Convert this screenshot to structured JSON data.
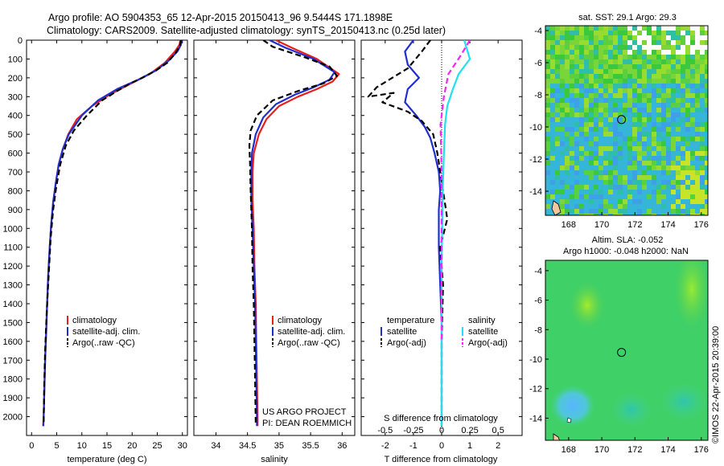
{
  "header": {
    "line1": "Argo profile: AO 5904353_65 12-Apr-2015 20150413_96 9.5444S 171.1898E",
    "line2": "Climatology: CARS2009. Satellite-adjusted climatology: synTS_20150413.nc (0.25d later)"
  },
  "colors": {
    "climatology": "#e8201c",
    "satellite": "#1f2ecf",
    "argo": "#000000",
    "sal_sat": "#22e0ee",
    "sal_argo": "#ff22ff"
  },
  "chart_data": [
    {
      "id": "temp",
      "type": "line",
      "xlabel": "temperature (deg C)",
      "ylabel": "",
      "xlim": [
        -1,
        31
      ],
      "ylim": [
        2100,
        0
      ],
      "xticks": [
        0,
        5,
        10,
        15,
        20,
        25,
        30
      ],
      "yticks": [
        0,
        100,
        200,
        300,
        400,
        500,
        600,
        700,
        800,
        900,
        1000,
        1100,
        1200,
        1300,
        1400,
        1500,
        1600,
        1700,
        1800,
        1900,
        2000
      ],
      "legend": [
        "climatology",
        "satellite-adj. clim.",
        "Argo(..raw -QC)"
      ],
      "series": [
        {
          "name": "climatology",
          "color": "#e8201c",
          "dash": "",
          "x": [
            29.6,
            29.4,
            28.5,
            26.5,
            23.5,
            19.8,
            15.5,
            12.0,
            9.0,
            7.3,
            6.2,
            5.4,
            4.8,
            4.3,
            3.9,
            3.6,
            3.3,
            3.1,
            2.9,
            2.7,
            2.55,
            2.4,
            2.3
          ],
          "y": [
            0,
            25,
            60,
            120,
            180,
            230,
            290,
            350,
            420,
            500,
            580,
            660,
            760,
            860,
            980,
            1100,
            1250,
            1400,
            1550,
            1700,
            1850,
            2000,
            2050
          ]
        },
        {
          "name": "satellite-adj. clim.",
          "color": "#1f2ecf",
          "dash": "",
          "x": [
            29.8,
            29.7,
            29.0,
            27.2,
            24.8,
            21.2,
            17.0,
            13.2,
            10.0,
            7.4,
            6.2,
            5.4,
            4.8,
            4.3,
            3.9,
            3.6,
            3.3,
            3.1,
            2.9,
            2.7,
            2.55,
            2.4,
            2.35
          ],
          "y": [
            0,
            25,
            60,
            110,
            160,
            210,
            260,
            320,
            400,
            500,
            580,
            660,
            760,
            860,
            980,
            1100,
            1250,
            1400,
            1550,
            1700,
            1850,
            2000,
            2050
          ]
        },
        {
          "name": "Argo(..raw -QC)",
          "color": "#000000",
          "dash": "7,4",
          "x": [
            29.7,
            29.5,
            28.6,
            27.0,
            24.8,
            22.0,
            19.6,
            17.0,
            14.0,
            11.0,
            8.4,
            6.8,
            5.7,
            4.9,
            4.3,
            3.8,
            3.4,
            3.0,
            2.7,
            2.5,
            2.4
          ],
          "y": [
            0,
            30,
            70,
            120,
            160,
            200,
            230,
            270,
            320,
            400,
            480,
            560,
            660,
            780,
            900,
            1050,
            1250,
            1450,
            1650,
            1850,
            2040
          ]
        }
      ]
    },
    {
      "id": "sal",
      "type": "line",
      "xlabel": "salinity",
      "ylabel": "",
      "xlim": [
        33.65,
        36.2
      ],
      "ylim": [
        2100,
        0
      ],
      "xticks": [
        34,
        34.5,
        35,
        35.5,
        36
      ],
      "xticklabels": [
        "34",
        "34.5",
        "35",
        "35.5",
        "36"
      ],
      "legend": [
        "climatology",
        "satellite-adj. clim.",
        "Argo(..raw -QC)"
      ],
      "annotation": [
        "US ARGO PROJECT",
        "PI: DEAN ROEMMICH"
      ],
      "series": [
        {
          "name": "climatology",
          "color": "#e8201c",
          "dash": "",
          "x": [
            34.95,
            35.2,
            35.6,
            35.95,
            35.85,
            35.6,
            35.3,
            35.0,
            34.8,
            34.68,
            34.6,
            34.58,
            34.58,
            34.6,
            34.61,
            34.63,
            34.64,
            34.65,
            34.66,
            34.66
          ],
          "y": [
            0,
            40,
            100,
            180,
            220,
            260,
            300,
            350,
            420,
            500,
            600,
            700,
            850,
            1000,
            1200,
            1400,
            1600,
            1800,
            2000,
            2050
          ]
        },
        {
          "name": "satellite-adj. clim.",
          "color": "#1f2ecf",
          "dash": "",
          "x": [
            34.85,
            35.1,
            35.55,
            35.88,
            35.8,
            35.55,
            35.25,
            34.95,
            34.75,
            34.63,
            34.57,
            34.56,
            34.56,
            34.58,
            34.6,
            34.62,
            34.63,
            34.64,
            34.65,
            34.65
          ],
          "y": [
            0,
            40,
            100,
            170,
            210,
            250,
            290,
            340,
            410,
            500,
            600,
            700,
            850,
            1000,
            1200,
            1400,
            1600,
            1800,
            2000,
            2050
          ]
        },
        {
          "name": "Argo(..raw -QC)",
          "color": "#000000",
          "dash": "7,4",
          "x": [
            34.75,
            34.9,
            35.4,
            35.8,
            35.92,
            35.7,
            35.3,
            34.9,
            34.65,
            34.55,
            34.53,
            34.54,
            34.55,
            34.57,
            34.58,
            34.6,
            34.61,
            34.62,
            34.63
          ],
          "y": [
            0,
            35,
            90,
            140,
            190,
            230,
            270,
            320,
            400,
            480,
            560,
            650,
            800,
            1000,
            1200,
            1400,
            1600,
            1800,
            2040
          ]
        }
      ]
    },
    {
      "id": "diff",
      "type": "line",
      "xlabel": "T difference from climatology",
      "ylabel": "",
      "x2label": "S difference from climatology",
      "xlim": [
        -2.85,
        2.85
      ],
      "ylim": [
        2100,
        0
      ],
      "xticks": [
        -2,
        -1,
        0,
        1,
        2
      ],
      "x2ticks": [
        -0.5,
        -0.25,
        0,
        0.25,
        0.5
      ],
      "x2ticklabels": [
        "-0.5",
        "-0.25",
        "0",
        "0.25",
        "0.5"
      ],
      "x2scale": 4,
      "legend_titles": [
        "temperature",
        "salinity"
      ],
      "legend": [
        "satellite",
        "Argo(-adj)",
        "satellite",
        "Argo(-adj)"
      ],
      "series": [
        {
          "name": "satellite",
          "quantity": "temperature",
          "color": "#1f2ecf",
          "dash": "",
          "x": [
            -1.0,
            -1.3,
            -1.2,
            -0.8,
            -1.2,
            -1.3,
            -0.9,
            -0.6,
            -0.4,
            -0.25,
            -0.1,
            -0.05,
            -0.1,
            -0.1,
            -0.05,
            0,
            0,
            0
          ],
          "y": [
            0,
            60,
            130,
            200,
            260,
            330,
            400,
            460,
            520,
            600,
            700,
            800,
            900,
            1100,
            1300,
            1500,
            1800,
            2050
          ]
        },
        {
          "name": "Argo(-adj)",
          "quantity": "temperature",
          "color": "#000000",
          "dash": "7,4",
          "x": [
            -0.4,
            -0.7,
            -1.2,
            -2.3,
            -2.6,
            -1.7,
            -2.1,
            -1.2,
            -0.7,
            -0.3,
            -0.15,
            0.15,
            0.2,
            -0.05,
            0.05,
            0,
            0
          ],
          "y": [
            0,
            60,
            150,
            250,
            300,
            280,
            330,
            380,
            430,
            500,
            600,
            900,
            950,
            1100,
            1300,
            1600,
            2040
          ]
        },
        {
          "name": "satellite",
          "quantity": "salinity",
          "color": "#22e0ee",
          "dash": "",
          "x": [
            0.2,
            0.25,
            0.15,
            0.1,
            0.05,
            0.03,
            0.02,
            0.01,
            0,
            0,
            0
          ],
          "y": [
            0,
            100,
            180,
            260,
            350,
            450,
            600,
            800,
            1200,
            1600,
            2050
          ]
        },
        {
          "name": "Argo(-adj)",
          "quantity": "salinity",
          "color": "#ff22ff",
          "dash": "7,4",
          "x": [
            0.25,
            0.17,
            0.06,
            0.02,
            -0.01,
            0,
            0,
            0
          ],
          "y": [
            0,
            80,
            180,
            300,
            450,
            700,
            1000,
            1600
          ]
        }
      ]
    },
    {
      "id": "sst_map",
      "type": "heatmap",
      "title": "sat. SST: 29.1  Argo: 29.3",
      "xlim": [
        166.6,
        176.4
      ],
      "ylim": [
        -15.5,
        -3.7
      ],
      "xticks": [
        168,
        170,
        172,
        174,
        176
      ],
      "yticks": [
        -4,
        -6,
        -8,
        -10,
        -12,
        -14
      ],
      "marker": {
        "lon": 171.19,
        "lat": -9.54
      }
    },
    {
      "id": "sla_map",
      "type": "heatmap",
      "title": "Altim. SLA: -0.052",
      "subtitle": "Argo h1000: -0.048  h2000: NaN",
      "xlim": [
        166.6,
        176.4
      ],
      "ylim": [
        -15.5,
        -3.3
      ],
      "xticks": [
        168,
        170,
        172,
        174,
        176
      ],
      "yticks": [
        -4,
        -6,
        -8,
        -10,
        -12,
        -14
      ],
      "marker": {
        "lon": 171.19,
        "lat": -9.54
      }
    }
  ],
  "watermark": "©IMOS 22-Apr-2015 20:39:00"
}
